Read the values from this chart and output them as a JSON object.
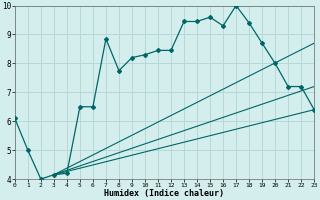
{
  "xlabel": "Humidex (Indice chaleur)",
  "bg_color": "#d4eeee",
  "grid_color": "#b8d8d8",
  "line_color": "#006666",
  "xlim": [
    0,
    23
  ],
  "ylim": [
    4,
    10
  ],
  "xticks": [
    0,
    1,
    2,
    3,
    4,
    5,
    6,
    7,
    8,
    9,
    10,
    11,
    12,
    13,
    14,
    15,
    16,
    17,
    18,
    19,
    20,
    21,
    22,
    23
  ],
  "yticks": [
    4,
    5,
    6,
    7,
    8,
    9,
    10
  ],
  "line1_x": [
    0,
    1,
    2,
    3,
    4,
    5,
    6,
    7,
    8,
    9,
    10,
    11,
    12,
    13,
    14,
    15,
    16,
    17,
    18,
    19,
    20,
    21,
    22,
    23
  ],
  "line1_y": [
    6.1,
    5.0,
    4.0,
    4.15,
    4.2,
    6.5,
    6.5,
    8.85,
    7.75,
    8.2,
    8.3,
    8.45,
    8.45,
    9.45,
    9.45,
    9.6,
    9.3,
    10.0,
    9.4,
    8.7,
    8.0,
    7.2,
    7.2,
    6.4
  ],
  "line2_x": [
    3,
    23
  ],
  "line2_y": [
    4.15,
    6.4
  ],
  "line3_x": [
    3,
    23
  ],
  "line3_y": [
    4.15,
    7.2
  ],
  "line4_x": [
    3,
    23
  ],
  "line4_y": [
    4.15,
    8.7
  ]
}
